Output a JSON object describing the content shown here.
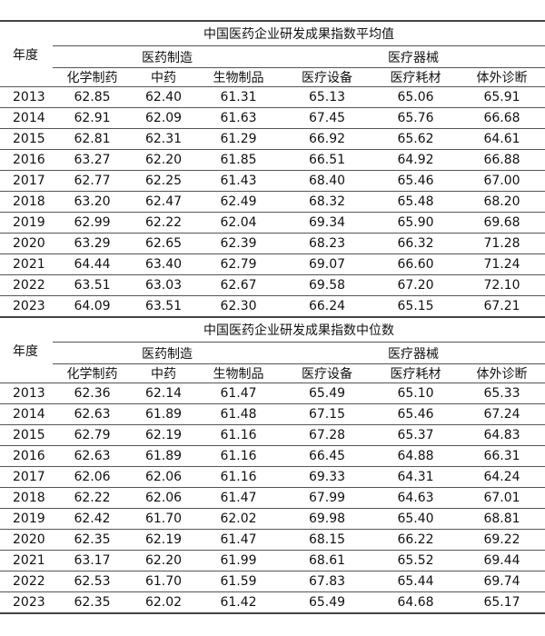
{
  "year_label": "年度",
  "groups": [
    "医药制造",
    "医疗器械"
  ],
  "columns": [
    "化学制药",
    "中药",
    "生物制品",
    "医疗设备",
    "医疗耗材",
    "体外诊断"
  ],
  "tables": [
    {
      "title": "中国医药企业研发成果指数平均值",
      "rows": [
        [
          "2013",
          "62.85",
          "62.40",
          "61.31",
          "65.13",
          "65.06",
          "65.91"
        ],
        [
          "2014",
          "62.91",
          "62.09",
          "61.63",
          "67.45",
          "65.76",
          "66.68"
        ],
        [
          "2015",
          "62.81",
          "62.31",
          "61.29",
          "66.92",
          "65.62",
          "64.61"
        ],
        [
          "2016",
          "63.27",
          "62.20",
          "61.85",
          "66.51",
          "64.92",
          "66.88"
        ],
        [
          "2017",
          "62.77",
          "62.25",
          "61.43",
          "68.40",
          "65.46",
          "67.00"
        ],
        [
          "2018",
          "63.20",
          "62.47",
          "62.49",
          "68.32",
          "65.48",
          "68.20"
        ],
        [
          "2019",
          "62.99",
          "62.22",
          "62.04",
          "69.34",
          "65.90",
          "69.68"
        ],
        [
          "2020",
          "63.29",
          "62.65",
          "62.39",
          "68.23",
          "66.32",
          "71.28"
        ],
        [
          "2021",
          "64.44",
          "63.40",
          "62.79",
          "69.07",
          "66.60",
          "71.24"
        ],
        [
          "2022",
          "63.51",
          "63.03",
          "62.67",
          "69.58",
          "67.20",
          "72.10"
        ],
        [
          "2023",
          "64.09",
          "63.51",
          "62.30",
          "66.24",
          "65.15",
          "67.21"
        ]
      ]
    },
    {
      "title": "中国医药企业研发成果指数中位数",
      "rows": [
        [
          "2013",
          "62.36",
          "62.14",
          "61.47",
          "65.49",
          "65.10",
          "65.33"
        ],
        [
          "2014",
          "62.63",
          "61.89",
          "61.48",
          "67.15",
          "65.46",
          "67.24"
        ],
        [
          "2015",
          "62.79",
          "62.19",
          "61.16",
          "67.28",
          "65.37",
          "64.83"
        ],
        [
          "2016",
          "62.63",
          "61.89",
          "61.16",
          "66.45",
          "64.88",
          "66.31"
        ],
        [
          "2017",
          "62.06",
          "62.06",
          "61.16",
          "69.33",
          "64.31",
          "64.24"
        ],
        [
          "2018",
          "62.22",
          "62.06",
          "61.47",
          "67.99",
          "64.63",
          "67.01"
        ],
        [
          "2019",
          "62.42",
          "61.70",
          "62.02",
          "69.98",
          "65.40",
          "68.81"
        ],
        [
          "2020",
          "62.35",
          "62.19",
          "61.47",
          "68.15",
          "66.22",
          "69.22"
        ],
        [
          "2021",
          "63.17",
          "62.20",
          "61.99",
          "68.61",
          "65.52",
          "69.44"
        ],
        [
          "2022",
          "62.53",
          "61.70",
          "61.59",
          "67.83",
          "65.44",
          "69.74"
        ],
        [
          "2023",
          "62.35",
          "62.02",
          "61.42",
          "65.49",
          "64.68",
          "65.17"
        ]
      ]
    }
  ]
}
